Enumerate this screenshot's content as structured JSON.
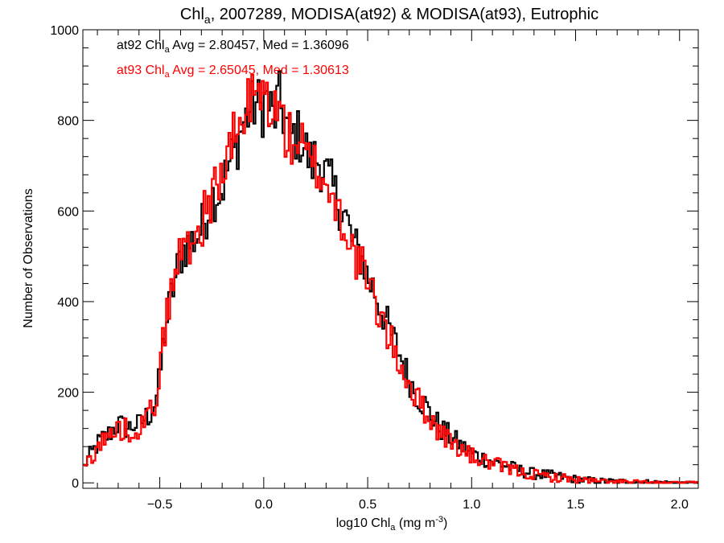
{
  "chart_data": {
    "type": "line",
    "title": {
      "pre": "Chl",
      "sub": "a",
      "post": ", 2007289, MODISA(at92) & MODISA(at93), Eutrophic"
    },
    "xlabel": {
      "pre": "log10 Chl",
      "sub": "a",
      "mid": " (mg m",
      "sup": "-3",
      "post": ")"
    },
    "ylabel": "Number of Observations",
    "xlim": [
      -0.87,
      2.09
    ],
    "ylim": [
      -12,
      1000
    ],
    "xticks": [
      {
        "v": -0.5,
        "label": "−0.5"
      },
      {
        "v": 0.0,
        "label": "0.0"
      },
      {
        "v": 0.5,
        "label": "0.5"
      },
      {
        "v": 1.0,
        "label": "1.0"
      },
      {
        "v": 1.5,
        "label": "1.5"
      },
      {
        "v": 2.0,
        "label": "2.0"
      }
    ],
    "yticks": [
      {
        "v": 0,
        "label": "0"
      },
      {
        "v": 200,
        "label": "200"
      },
      {
        "v": 400,
        "label": "400"
      },
      {
        "v": 600,
        "label": "600"
      },
      {
        "v": 800,
        "label": "800"
      },
      {
        "v": 1000,
        "label": "1000"
      }
    ],
    "bin_width": 0.01,
    "annotations": [
      {
        "pre": "at92 Chl",
        "sub": "a",
        "post": " Avg = 2.80457, Med = 1.36096",
        "color": "#000000"
      },
      {
        "pre": "at93 Chl",
        "sub": "a",
        "post": " Avg = 2.65045, Med = 1.30613",
        "color": "#ff0000"
      }
    ],
    "series": [
      {
        "color": "#000000",
        "x": [
          -0.87,
          -0.85,
          -0.82,
          -0.8,
          -0.78,
          -0.75,
          -0.72,
          -0.7,
          -0.68,
          -0.65,
          -0.62,
          -0.6,
          -0.58,
          -0.55,
          -0.52,
          -0.5,
          -0.48,
          -0.45,
          -0.42,
          -0.4,
          -0.38,
          -0.35,
          -0.32,
          -0.3,
          -0.27,
          -0.25,
          -0.22,
          -0.2,
          -0.17,
          -0.15,
          -0.12,
          -0.1,
          -0.08,
          -0.05,
          -0.03,
          -0.01,
          0.01,
          0.03,
          0.05,
          0.07,
          0.09,
          0.11,
          0.13,
          0.15,
          0.18,
          0.2,
          0.23,
          0.25,
          0.28,
          0.3,
          0.33,
          0.35,
          0.38,
          0.4,
          0.42,
          0.45,
          0.48,
          0.5,
          0.53,
          0.55,
          0.58,
          0.6,
          0.63,
          0.65,
          0.68,
          0.7,
          0.73,
          0.75,
          0.78,
          0.8,
          0.83,
          0.85,
          0.88,
          0.9,
          0.93,
          0.95,
          0.98,
          1.0,
          1.05,
          1.1,
          1.15,
          1.2,
          1.25,
          1.3,
          1.35,
          1.4,
          1.45,
          1.5,
          1.55,
          1.6,
          1.7,
          1.8,
          1.9,
          2.0
        ],
        "y": [
          30,
          50,
          70,
          85,
          95,
          105,
          120,
          130,
          125,
          120,
          130,
          125,
          140,
          150,
          180,
          230,
          320,
          400,
          460,
          500,
          520,
          530,
          545,
          560,
          600,
          630,
          640,
          650,
          700,
          720,
          760,
          790,
          810,
          830,
          840,
          820,
          850,
          830,
          800,
          850,
          820,
          790,
          760,
          770,
          760,
          740,
          700,
          720,
          700,
          680,
          650,
          630,
          600,
          580,
          540,
          510,
          490,
          450,
          430,
          400,
          370,
          340,
          310,
          290,
          250,
          230,
          200,
          185,
          170,
          150,
          135,
          120,
          110,
          100,
          90,
          80,
          72,
          65,
          55,
          48,
          40,
          32,
          25,
          20,
          18,
          15,
          12,
          8,
          6,
          4,
          3,
          2,
          1,
          0
        ]
      },
      {
        "color": "#ff0000",
        "x": [
          -0.87,
          -0.85,
          -0.82,
          -0.8,
          -0.78,
          -0.75,
          -0.72,
          -0.7,
          -0.68,
          -0.65,
          -0.62,
          -0.6,
          -0.58,
          -0.55,
          -0.52,
          -0.5,
          -0.48,
          -0.45,
          -0.42,
          -0.4,
          -0.38,
          -0.35,
          -0.32,
          -0.3,
          -0.27,
          -0.25,
          -0.22,
          -0.2,
          -0.17,
          -0.15,
          -0.12,
          -0.1,
          -0.08,
          -0.05,
          -0.03,
          -0.01,
          0.01,
          0.03,
          0.05,
          0.07,
          0.09,
          0.11,
          0.13,
          0.15,
          0.18,
          0.2,
          0.23,
          0.25,
          0.28,
          0.3,
          0.33,
          0.35,
          0.38,
          0.4,
          0.42,
          0.45,
          0.48,
          0.5,
          0.53,
          0.55,
          0.58,
          0.6,
          0.63,
          0.65,
          0.68,
          0.7,
          0.73,
          0.75,
          0.78,
          0.8,
          0.83,
          0.85,
          0.88,
          0.9,
          0.93,
          0.95,
          0.98,
          1.0,
          1.05,
          1.1,
          1.15,
          1.2,
          1.25,
          1.3,
          1.35,
          1.4,
          1.45,
          1.5,
          1.55,
          1.6,
          1.7,
          1.8,
          1.9,
          2.0
        ],
        "y": [
          25,
          45,
          65,
          80,
          90,
          100,
          112,
          120,
          118,
          115,
          125,
          120,
          135,
          148,
          185,
          240,
          330,
          410,
          470,
          510,
          525,
          535,
          550,
          570,
          610,
          640,
          660,
          680,
          720,
          750,
          780,
          800,
          830,
          850,
          860,
          840,
          860,
          840,
          810,
          830,
          800,
          770,
          750,
          760,
          750,
          720,
          690,
          700,
          680,
          660,
          630,
          610,
          580,
          560,
          520,
          490,
          470,
          430,
          410,
          380,
          350,
          320,
          290,
          270,
          240,
          220,
          190,
          175,
          160,
          140,
          125,
          110,
          100,
          90,
          82,
          72,
          65,
          58,
          50,
          42,
          35,
          28,
          22,
          18,
          15,
          12,
          10,
          7,
          5,
          3,
          2,
          1,
          0,
          0
        ]
      }
    ]
  }
}
